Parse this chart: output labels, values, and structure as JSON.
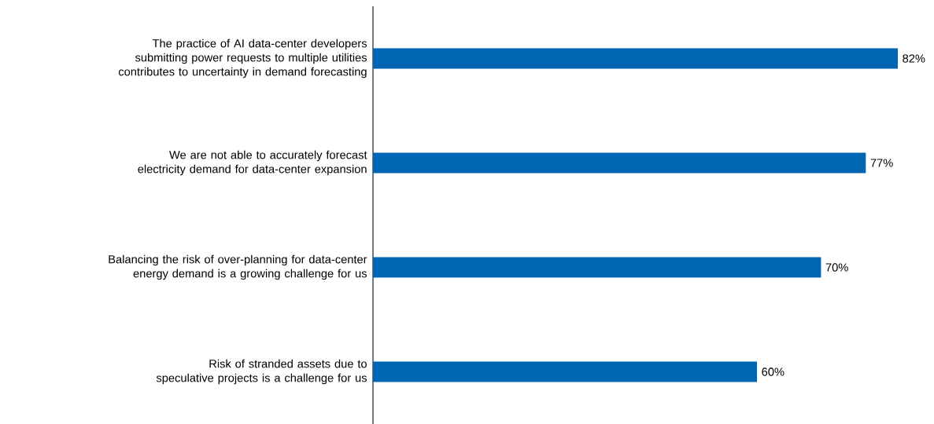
{
  "chart_data": {
    "type": "bar",
    "orientation": "horizontal",
    "categories": [
      "The practice of AI data-center developers submitting power requests to multiple utilities contributes to uncertainty in demand forecasting",
      "We are not able to accurately forecast electricity demand for data-center expansion",
      "Balancing the risk of over-planning for data-center energy demand is a growing challenge for us",
      "Risk of stranded assets due to speculative projects is a challenge for us"
    ],
    "values": [
      82,
      77,
      70,
      60
    ],
    "value_labels": [
      "82%",
      "77%",
      "70%",
      "60%"
    ],
    "color": "#0066b3"
  }
}
